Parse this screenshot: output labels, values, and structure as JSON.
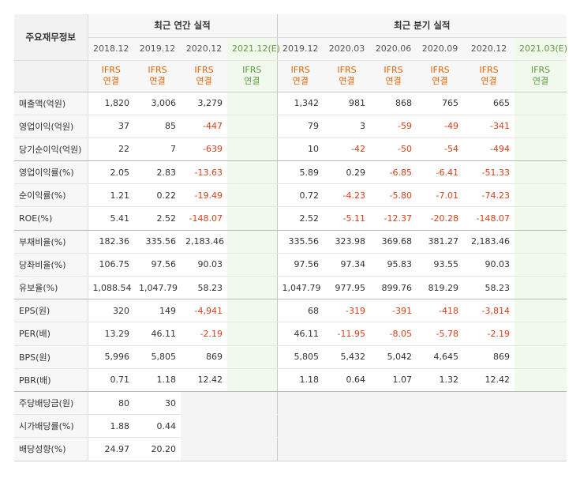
{
  "header": {
    "label_col": "주요재무정보",
    "annual_group": "최근 연간 실적",
    "quarterly_group": "최근 분기 실적",
    "annual_periods": [
      "2018.12",
      "2019.12",
      "2020.12",
      "2021.12(E)"
    ],
    "quarterly_periods": [
      "2019.12",
      "2020.03",
      "2020.06",
      "2020.09",
      "2020.12",
      "2021.03(E)"
    ],
    "ifrs_line1": "IFRS",
    "ifrs_line2": "연결"
  },
  "rows": [
    {
      "label": "매출액(억원)",
      "annual": [
        "1,820",
        "3,006",
        "3,279",
        ""
      ],
      "quarterly": [
        "1,342",
        "981",
        "868",
        "765",
        "665",
        ""
      ]
    },
    {
      "label": "영업이익(억원)",
      "annual": [
        "37",
        "85",
        "-447",
        ""
      ],
      "quarterly": [
        "79",
        "3",
        "-59",
        "-49",
        "-341",
        ""
      ]
    },
    {
      "label": "당기순이익(억원)",
      "annual": [
        "22",
        "7",
        "-639",
        ""
      ],
      "quarterly": [
        "10",
        "-42",
        "-50",
        "-54",
        "-494",
        ""
      ]
    },
    {
      "label": "영업이익률(%)",
      "annual": [
        "2.05",
        "2.83",
        "-13.63",
        ""
      ],
      "quarterly": [
        "5.89",
        "0.29",
        "-6.85",
        "-6.41",
        "-51.33",
        ""
      ]
    },
    {
      "label": "순이익률(%)",
      "annual": [
        "1.21",
        "0.22",
        "-19.49",
        ""
      ],
      "quarterly": [
        "0.72",
        "-4.23",
        "-5.80",
        "-7.01",
        "-74.23",
        ""
      ]
    },
    {
      "label": "ROE(%)",
      "annual": [
        "5.41",
        "2.52",
        "-148.07",
        ""
      ],
      "quarterly": [
        "2.52",
        "-5.11",
        "-12.37",
        "-20.28",
        "-148.07",
        ""
      ]
    },
    {
      "label": "부채비율(%)",
      "annual": [
        "182.36",
        "335.56",
        "2,183.46",
        ""
      ],
      "quarterly": [
        "335.56",
        "323.98",
        "369.68",
        "381.27",
        "2,183.46",
        ""
      ]
    },
    {
      "label": "당좌비율(%)",
      "annual": [
        "106.75",
        "97.56",
        "90.03",
        ""
      ],
      "quarterly": [
        "97.56",
        "97.34",
        "95.83",
        "93.55",
        "90.03",
        ""
      ]
    },
    {
      "label": "유보율(%)",
      "annual": [
        "1,088.54",
        "1,047.79",
        "58.23",
        ""
      ],
      "quarterly": [
        "1,047.79",
        "977.95",
        "899.76",
        "819.29",
        "58.23",
        ""
      ]
    },
    {
      "label": "EPS(원)",
      "annual": [
        "320",
        "149",
        "-4,941",
        ""
      ],
      "quarterly": [
        "68",
        "-319",
        "-391",
        "-418",
        "-3,814",
        ""
      ]
    },
    {
      "label": "PER(배)",
      "annual": [
        "13.29",
        "46.11",
        "-2.19",
        ""
      ],
      "quarterly": [
        "46.11",
        "-11.95",
        "-8.05",
        "-5.78",
        "-2.19",
        ""
      ]
    },
    {
      "label": "BPS(원)",
      "annual": [
        "5,996",
        "5,805",
        "869",
        ""
      ],
      "quarterly": [
        "5,805",
        "5,432",
        "5,042",
        "4,645",
        "869",
        ""
      ]
    },
    {
      "label": "PBR(배)",
      "annual": [
        "0.71",
        "1.18",
        "12.42",
        ""
      ],
      "quarterly": [
        "1.18",
        "0.64",
        "1.07",
        "1.32",
        "12.42",
        ""
      ]
    },
    {
      "label": "주당배당금(원)",
      "annual": [
        "80",
        "30",
        "",
        ""
      ],
      "quarterly": [
        "",
        "",
        "",
        "",
        "",
        ""
      ]
    },
    {
      "label": "시가배당률(%)",
      "annual": [
        "1.88",
        "0.44",
        "",
        ""
      ],
      "quarterly": [
        "",
        "",
        "",
        "",
        "",
        ""
      ]
    },
    {
      "label": "배당성향(%)",
      "annual": [
        "24.97",
        "20.20",
        "",
        ""
      ],
      "quarterly": [
        "",
        "",
        "",
        "",
        "",
        ""
      ]
    }
  ],
  "colors": {
    "ifrs_text": "#e0650b",
    "estimate_text": "#5f9a43",
    "estimate_bg": "#f1f8ec",
    "negative_text": "#d4411a"
  }
}
